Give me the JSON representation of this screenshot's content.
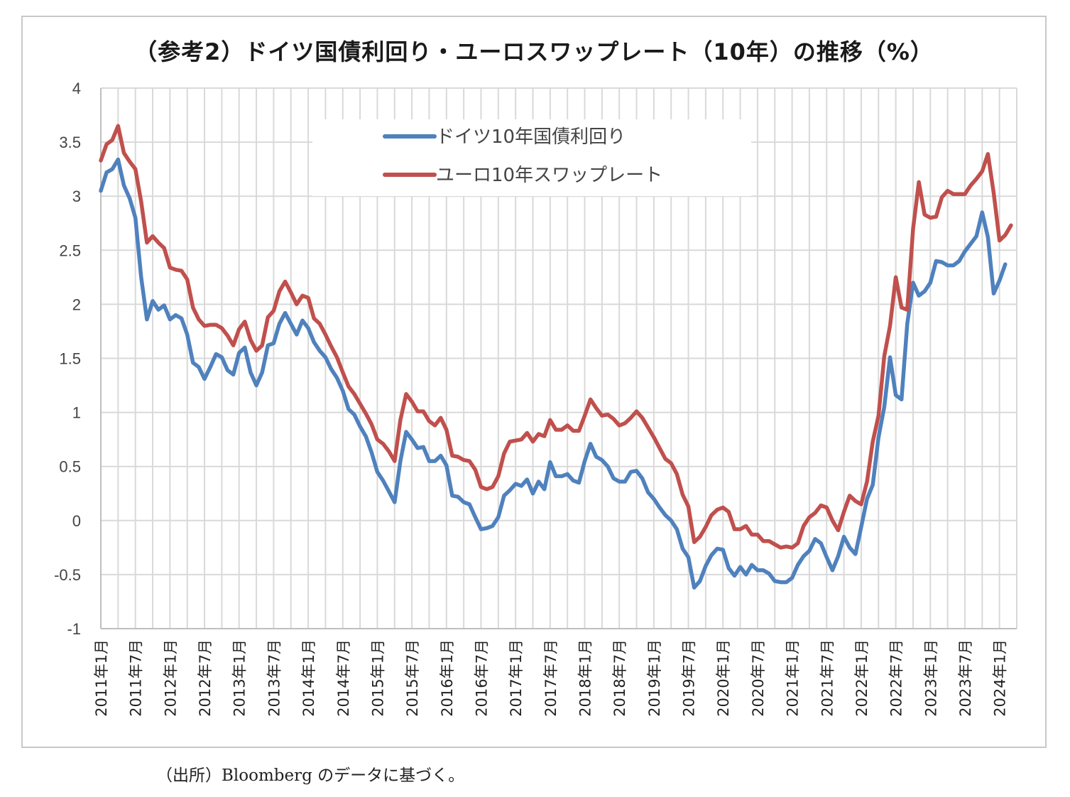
{
  "chart_data": {
    "type": "line",
    "title": "（参考2）ドイツ国債利回り・ユーロスワップレート（10年）の推移（%）",
    "xlabel": "",
    "ylabel": "",
    "ylim": [
      -1,
      4
    ],
    "y_ticks": [
      "4",
      "3.5",
      "3",
      "2.5",
      "2",
      "1.5",
      "1",
      "0.5",
      "0",
      "-0.5",
      "-1"
    ],
    "x_tick_labels": [
      "2011年1月",
      "2011年7月",
      "2012年1月",
      "2012年7月",
      "2013年1月",
      "2013年7月",
      "2014年1月",
      "2014年7月",
      "2015年1月",
      "2015年7月",
      "2016年1月",
      "2016年7月",
      "2017年1月",
      "2017年7月",
      "2018年1月",
      "2018年7月",
      "2019年1月",
      "2019年7月",
      "2020年1月",
      "2020年7月",
      "2021年1月",
      "2021年7月",
      "2022年1月",
      "2022年7月",
      "2023年1月",
      "2023年7月",
      "2024年1月"
    ],
    "grid": true,
    "legend_position": "top-center",
    "x_start": "2011-01",
    "series": [
      {
        "name": "ドイツ10年国債利回り",
        "color": "#4f81bd",
        "values": [
          3.05,
          3.22,
          3.25,
          3.34,
          3.1,
          2.98,
          2.8,
          2.25,
          1.86,
          2.03,
          1.95,
          1.99,
          1.86,
          1.9,
          1.87,
          1.72,
          1.46,
          1.42,
          1.31,
          1.42,
          1.54,
          1.51,
          1.39,
          1.35,
          1.55,
          1.6,
          1.37,
          1.25,
          1.37,
          1.62,
          1.64,
          1.82,
          1.92,
          1.82,
          1.72,
          1.85,
          1.78,
          1.65,
          1.57,
          1.51,
          1.4,
          1.32,
          1.2,
          1.03,
          0.98,
          0.87,
          0.78,
          0.63,
          0.45,
          0.37,
          0.27,
          0.17,
          0.55,
          0.82,
          0.75,
          0.67,
          0.68,
          0.55,
          0.55,
          0.6,
          0.51,
          0.23,
          0.22,
          0.17,
          0.15,
          0.03,
          -0.08,
          -0.07,
          -0.05,
          0.03,
          0.23,
          0.28,
          0.34,
          0.32,
          0.38,
          0.25,
          0.36,
          0.29,
          0.54,
          0.41,
          0.41,
          0.43,
          0.37,
          0.35,
          0.55,
          0.71,
          0.59,
          0.56,
          0.5,
          0.39,
          0.36,
          0.36,
          0.45,
          0.46,
          0.39,
          0.26,
          0.2,
          0.12,
          0.05,
          0.0,
          -0.08,
          -0.26,
          -0.34,
          -0.62,
          -0.56,
          -0.42,
          -0.32,
          -0.26,
          -0.27,
          -0.44,
          -0.51,
          -0.43,
          -0.5,
          -0.41,
          -0.46,
          -0.46,
          -0.49,
          -0.56,
          -0.57,
          -0.57,
          -0.53,
          -0.41,
          -0.33,
          -0.28,
          -0.17,
          -0.21,
          -0.34,
          -0.46,
          -0.33,
          -0.15,
          -0.25,
          -0.31,
          -0.06,
          0.2,
          0.33,
          0.77,
          1.05,
          1.51,
          1.16,
          1.12,
          1.82,
          2.2,
          2.08,
          2.12,
          2.2,
          2.4,
          2.39,
          2.36,
          2.36,
          2.4,
          2.49,
          2.56,
          2.63,
          2.85,
          2.62,
          2.1,
          2.22,
          2.37
        ]
      },
      {
        "name": "ユーロ10年スワップレート",
        "color": "#c0504d",
        "values": [
          3.33,
          3.48,
          3.52,
          3.65,
          3.4,
          3.32,
          3.25,
          2.95,
          2.57,
          2.63,
          2.57,
          2.52,
          2.34,
          2.32,
          2.31,
          2.23,
          1.97,
          1.86,
          1.8,
          1.81,
          1.81,
          1.78,
          1.71,
          1.62,
          1.77,
          1.84,
          1.67,
          1.57,
          1.62,
          1.88,
          1.94,
          2.12,
          2.21,
          2.11,
          2.0,
          2.08,
          2.06,
          1.87,
          1.82,
          1.72,
          1.61,
          1.51,
          1.37,
          1.24,
          1.17,
          1.08,
          0.99,
          0.89,
          0.75,
          0.71,
          0.64,
          0.55,
          0.93,
          1.17,
          1.1,
          1.01,
          1.01,
          0.92,
          0.88,
          0.95,
          0.84,
          0.6,
          0.59,
          0.56,
          0.55,
          0.47,
          0.31,
          0.29,
          0.31,
          0.41,
          0.62,
          0.73,
          0.74,
          0.75,
          0.81,
          0.73,
          0.8,
          0.78,
          0.93,
          0.84,
          0.84,
          0.88,
          0.83,
          0.83,
          0.97,
          1.12,
          1.04,
          0.97,
          0.98,
          0.94,
          0.88,
          0.9,
          0.95,
          1.01,
          0.95,
          0.86,
          0.77,
          0.67,
          0.57,
          0.53,
          0.43,
          0.24,
          0.13,
          -0.2,
          -0.15,
          -0.06,
          0.05,
          0.1,
          0.12,
          0.08,
          -0.08,
          -0.08,
          -0.05,
          -0.13,
          -0.13,
          -0.19,
          -0.19,
          -0.22,
          -0.25,
          -0.24,
          -0.25,
          -0.21,
          -0.05,
          0.03,
          0.07,
          0.14,
          0.12,
          0.0,
          -0.09,
          0.08,
          0.23,
          0.18,
          0.15,
          0.36,
          0.73,
          0.97,
          1.52,
          1.8,
          2.25,
          1.97,
          1.95,
          2.7,
          3.13,
          2.83,
          2.8,
          2.81,
          2.99,
          3.05,
          3.02,
          3.02,
          3.02,
          3.1,
          3.16,
          3.23,
          3.39,
          3.03,
          2.59,
          2.64,
          2.73
        ]
      }
    ]
  },
  "source_note": "（出所）Bloomberg のデータに基づく。"
}
